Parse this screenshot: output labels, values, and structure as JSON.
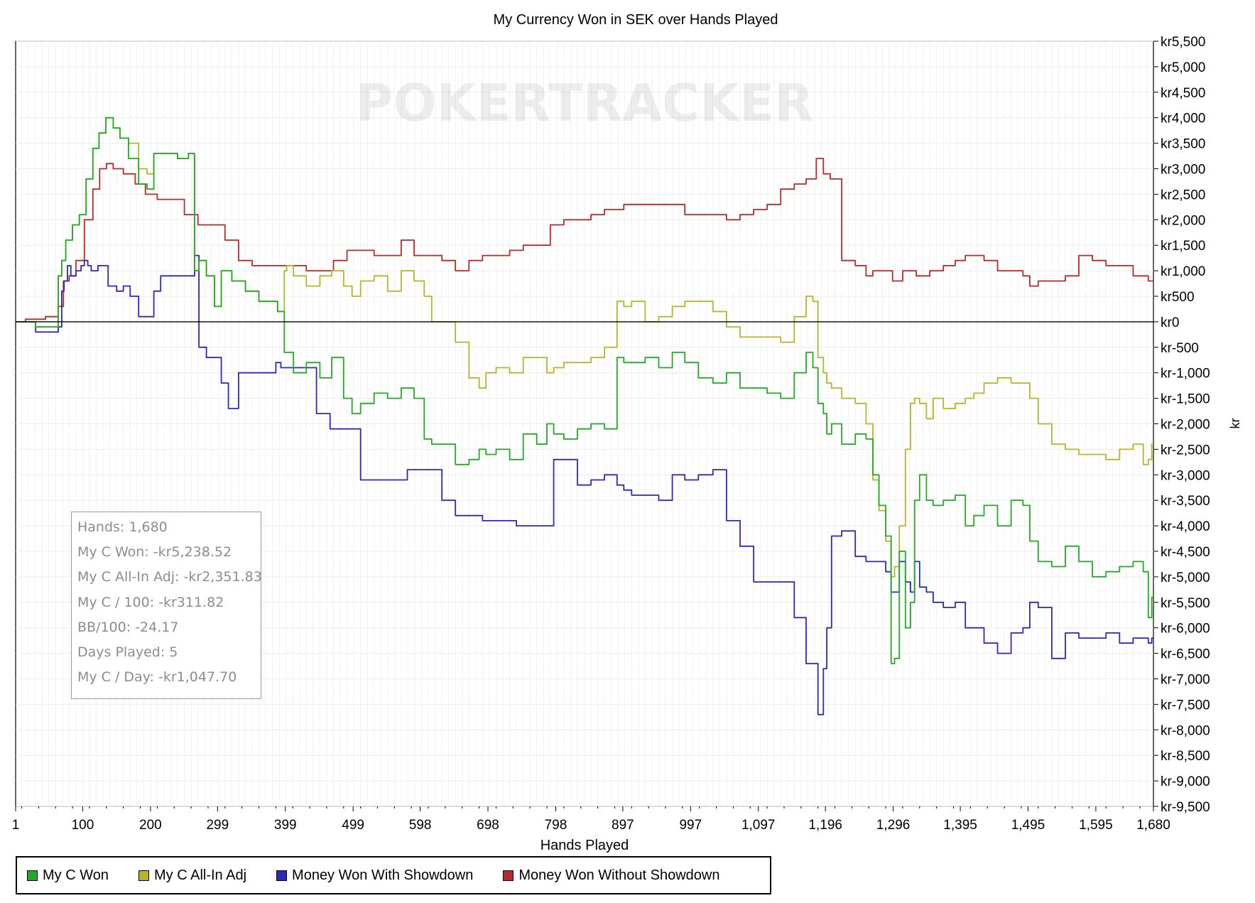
{
  "chart_data": {
    "type": "line",
    "title": "My Currency Won in SEK over Hands Played",
    "xlabel": "Hands Played",
    "ylabel": "kr",
    "x_ticks": [
      1,
      100,
      200,
      299,
      399,
      499,
      598,
      698,
      798,
      897,
      997,
      1097,
      1196,
      1296,
      1395,
      1495,
      1595,
      1680
    ],
    "x_tick_labels": [
      "1",
      "100",
      "200",
      "299",
      "399",
      "499",
      "598",
      "698",
      "798",
      "897",
      "997",
      "1,097",
      "1,196",
      "1,296",
      "1,395",
      "1,495",
      "1,595",
      "1,680"
    ],
    "xlim": [
      1,
      1680
    ],
    "ylim": [
      -9500,
      5500
    ],
    "y_ticks": [
      5500,
      5000,
      4500,
      4000,
      3500,
      3000,
      2500,
      2000,
      1500,
      1000,
      500,
      0,
      -500,
      -1000,
      -1500,
      -2000,
      -2500,
      -3000,
      -3500,
      -4000,
      -4500,
      -5000,
      -5500,
      -6000,
      -6500,
      -7000,
      -7500,
      -8000,
      -8500,
      -9000,
      -9500
    ],
    "y_tick_labels": [
      "kr5,500",
      "kr5,000",
      "kr4,500",
      "kr4,000",
      "kr3,500",
      "kr3,000",
      "kr2,500",
      "kr2,000",
      "kr1,500",
      "kr1,000",
      "kr500",
      "kr0",
      "kr-500",
      "kr-1,000",
      "kr-1,500",
      "kr-2,000",
      "kr-2,500",
      "kr-3,000",
      "kr-3,500",
      "kr-4,000",
      "kr-4,500",
      "kr-5,000",
      "kr-5,500",
      "kr-6,000",
      "kr-6,500",
      "kr-7,000",
      "kr-7,500",
      "kr-8,000",
      "kr-8,500",
      "kr-9,000",
      "kr-9,500"
    ],
    "y_axis_side": "right",
    "grid": true,
    "zero_line": true,
    "legend_position": "bottom-left",
    "series": [
      {
        "name": "My C Won",
        "color": "#22aa22",
        "x": [
          1,
          60,
          68,
          70,
          80,
          90,
          100,
          110,
          120,
          128,
          140,
          150,
          160,
          175,
          190,
          200,
          210,
          230,
          250,
          262,
          268,
          275,
          290,
          299,
          310,
          330,
          350,
          370,
          380,
          395,
          400,
          402,
          420,
          440,
          460,
          475,
          495,
          500,
          520,
          540,
          560,
          580,
          598,
          610,
          620,
          640,
          660,
          680,
          690,
          700,
          720,
          740,
          760,
          780,
          790,
          800,
          820,
          840,
          860,
          880,
          897,
          900,
          920,
          940,
          960,
          980,
          997,
          1020,
          1040,
          1060,
          1080,
          1100,
          1120,
          1140,
          1160,
          1175,
          1180,
          1190,
          1196,
          1200,
          1210,
          1230,
          1250,
          1262,
          1270,
          1280,
          1290,
          1296,
          1300,
          1310,
          1318,
          1325,
          1330,
          1340,
          1350,
          1360,
          1380,
          1395,
          1410,
          1420,
          1440,
          1460,
          1480,
          1495,
          1500,
          1520,
          1540,
          1560,
          1580,
          1600,
          1620,
          1640,
          1660,
          1670,
          1675,
          1680
        ],
        "y": [
          0,
          -100,
          900,
          1200,
          1600,
          1900,
          2100,
          2800,
          3400,
          3700,
          4000,
          3800,
          3600,
          3200,
          2700,
          2600,
          3300,
          3300,
          3200,
          3300,
          1000,
          1200,
          900,
          300,
          1000,
          800,
          600,
          400,
          400,
          200,
          -600,
          -600,
          -1000,
          -800,
          -1100,
          -700,
          -1500,
          -1800,
          -1600,
          -1400,
          -1500,
          -1300,
          -1500,
          -2300,
          -2400,
          -2400,
          -2800,
          -2700,
          -2500,
          -2600,
          -2500,
          -2700,
          -2200,
          -2400,
          -2000,
          -2200,
          -2300,
          -2100,
          -2000,
          -2100,
          -700,
          -800,
          -800,
          -700,
          -900,
          -600,
          -800,
          -1100,
          -1200,
          -1000,
          -1300,
          -1300,
          -1400,
          -1500,
          -1000,
          -600,
          -900,
          -1600,
          -1800,
          -2200,
          -2000,
          -2400,
          -2200,
          -2300,
          -3000,
          -3600,
          -4200,
          -6700,
          -6600,
          -4500,
          -6000,
          -5500,
          -3500,
          -3000,
          -3500,
          -3600,
          -3500,
          -3400,
          -4000,
          -3800,
          -3600,
          -4000,
          -3500,
          -3600,
          -4300,
          -4700,
          -4800,
          -4400,
          -4700,
          -5000,
          -4900,
          -4800,
          -4700,
          -4900,
          -5800,
          -5400
        ]
      },
      {
        "name": "My C All-In Adj",
        "color": "#b5b52a",
        "x": [
          1,
          60,
          68,
          70,
          80,
          90,
          100,
          110,
          120,
          128,
          140,
          150,
          160,
          175,
          190,
          200,
          210,
          230,
          250,
          262,
          268,
          275,
          290,
          299,
          310,
          330,
          350,
          370,
          380,
          395,
          400,
          402,
          420,
          440,
          460,
          475,
          495,
          500,
          520,
          540,
          560,
          580,
          598,
          610,
          620,
          640,
          660,
          680,
          690,
          700,
          720,
          740,
          760,
          780,
          790,
          800,
          820,
          840,
          860,
          880,
          897,
          900,
          920,
          940,
          960,
          980,
          997,
          1020,
          1040,
          1060,
          1080,
          1100,
          1120,
          1140,
          1160,
          1175,
          1180,
          1190,
          1196,
          1200,
          1210,
          1230,
          1250,
          1262,
          1270,
          1280,
          1290,
          1296,
          1300,
          1310,
          1318,
          1325,
          1330,
          1340,
          1350,
          1360,
          1380,
          1395,
          1410,
          1420,
          1440,
          1460,
          1480,
          1495,
          1500,
          1520,
          1540,
          1560,
          1580,
          1600,
          1620,
          1640,
          1660,
          1670,
          1675,
          1680
        ],
        "y": [
          0,
          -100,
          900,
          1200,
          1600,
          1900,
          2100,
          2800,
          3400,
          3700,
          4000,
          3800,
          3600,
          3500,
          3000,
          2900,
          3300,
          3300,
          3200,
          3300,
          1000,
          1200,
          900,
          300,
          1000,
          800,
          600,
          400,
          400,
          200,
          1000,
          1100,
          900,
          700,
          900,
          1000,
          700,
          500,
          800,
          900,
          600,
          1000,
          800,
          500,
          0,
          0,
          -400,
          -1100,
          -1300,
          -1000,
          -900,
          -1000,
          -700,
          -700,
          -1000,
          -900,
          -800,
          -800,
          -700,
          -500,
          400,
          300,
          400,
          0,
          100,
          300,
          400,
          400,
          200,
          -100,
          -300,
          -300,
          -300,
          -400,
          100,
          500,
          400,
          -700,
          -1000,
          -1200,
          -1300,
          -1500,
          -1600,
          -2000,
          -3100,
          -3700,
          -4300,
          -5000,
          -4800,
          -4000,
          -2500,
          -1600,
          -1500,
          -1600,
          -1900,
          -1500,
          -1700,
          -1600,
          -1500,
          -1400,
          -1200,
          -1100,
          -1200,
          -1200,
          -1500,
          -2000,
          -2400,
          -2500,
          -2600,
          -2600,
          -2700,
          -2500,
          -2400,
          -2800,
          -2700,
          -2400
        ]
      },
      {
        "name": "Money Won With Showdown",
        "color": "#2a2ab5",
        "x": [
          1,
          60,
          68,
          70,
          75,
          80,
          85,
          95,
          100,
          105,
          110,
          115,
          130,
          145,
          155,
          165,
          175,
          190,
          200,
          210,
          220,
          250,
          262,
          268,
          275,
          290,
          299,
          310,
          320,
          340,
          360,
          380,
          390,
          395,
          430,
          460,
          470,
          500,
          520,
          560,
          598,
          620,
          640,
          660,
          680,
          700,
          720,
          760,
          780,
          790,
          800,
          820,
          840,
          860,
          880,
          897,
          900,
          920,
          940,
          960,
          980,
          997,
          1020,
          1040,
          1060,
          1080,
          1100,
          1120,
          1140,
          1160,
          1175,
          1180,
          1190,
          1196,
          1200,
          1210,
          1230,
          1250,
          1262,
          1270,
          1280,
          1290,
          1296,
          1300,
          1310,
          1318,
          1325,
          1330,
          1340,
          1350,
          1360,
          1380,
          1395,
          1410,
          1420,
          1440,
          1460,
          1480,
          1495,
          1500,
          1520,
          1540,
          1560,
          1580,
          1600,
          1620,
          1640,
          1660,
          1670,
          1675,
          1680
        ],
        "y": [
          0,
          -200,
          -100,
          600,
          800,
          1100,
          900,
          1000,
          1100,
          1200,
          1100,
          1000,
          1100,
          700,
          600,
          700,
          500,
          100,
          100,
          600,
          900,
          900,
          900,
          1300,
          -500,
          -700,
          -700,
          -1200,
          -1700,
          -1000,
          -1000,
          -1000,
          -800,
          -900,
          -900,
          -1800,
          -2100,
          -2100,
          -3100,
          -3100,
          -2900,
          -2900,
          -3500,
          -3800,
          -3800,
          -3900,
          -3900,
          -4000,
          -4000,
          -4000,
          -2700,
          -2700,
          -3200,
          -3100,
          -3000,
          -3200,
          -3300,
          -3400,
          -3400,
          -3500,
          -3000,
          -3100,
          -3000,
          -2900,
          -3900,
          -4400,
          -5100,
          -5100,
          -5100,
          -5800,
          -6700,
          -6700,
          -7700,
          -6800,
          -6000,
          -4200,
          -4100,
          -4600,
          -4700,
          -4700,
          -4700,
          -4900,
          -5300,
          -5300,
          -4700,
          -5100,
          -5300,
          -4700,
          -5200,
          -5300,
          -5500,
          -5600,
          -5500,
          -6000,
          -6000,
          -6300,
          -6500,
          -6100,
          -6000,
          -5500,
          -5600,
          -6600,
          -6100,
          -6200,
          -6200,
          -6100,
          -6300,
          -6200,
          -6200,
          -6300,
          -6200
        ]
      },
      {
        "name": "Money Won Without Showdown",
        "color": "#b52a2a",
        "x": [
          1,
          30,
          60,
          68,
          75,
          85,
          95,
          110,
          120,
          130,
          140,
          150,
          170,
          185,
          200,
          220,
          240,
          260,
          280,
          300,
          320,
          340,
          360,
          380,
          400,
          420,
          440,
          460,
          480,
          500,
          520,
          540,
          560,
          580,
          598,
          620,
          640,
          660,
          680,
          700,
          720,
          740,
          760,
          780,
          800,
          820,
          840,
          860,
          880,
          897,
          900,
          920,
          940,
          960,
          980,
          997,
          1020,
          1040,
          1060,
          1080,
          1100,
          1120,
          1140,
          1160,
          1175,
          1190,
          1196,
          1210,
          1230,
          1250,
          1262,
          1270,
          1290,
          1300,
          1320,
          1340,
          1360,
          1380,
          1395,
          1410,
          1420,
          1440,
          1460,
          1480,
          1495,
          1500,
          1520,
          1540,
          1560,
          1580,
          1600,
          1620,
          1640,
          1660,
          1670,
          1675,
          1680
        ],
        "y": [
          0,
          50,
          100,
          300,
          800,
          900,
          1200,
          2000,
          2600,
          3000,
          3100,
          3000,
          2900,
          2700,
          2500,
          2400,
          2400,
          2100,
          1900,
          1900,
          1600,
          1200,
          1100,
          1100,
          1100,
          1100,
          1000,
          1000,
          1200,
          1400,
          1400,
          1300,
          1300,
          1600,
          1300,
          1300,
          1200,
          1000,
          1200,
          1300,
          1300,
          1400,
          1500,
          1500,
          1900,
          2000,
          2000,
          2100,
          2200,
          2200,
          2300,
          2300,
          2300,
          2300,
          2300,
          2100,
          2100,
          2100,
          2000,
          2100,
          2200,
          2300,
          2600,
          2700,
          2800,
          3200,
          2900,
          2800,
          1200,
          1100,
          900,
          1000,
          1000,
          800,
          1000,
          900,
          1000,
          1100,
          1200,
          1300,
          1300,
          1200,
          1000,
          1000,
          900,
          700,
          800,
          800,
          900,
          1300,
          1200,
          1100,
          1100,
          900,
          900,
          800,
          800
        ]
      }
    ]
  },
  "watermark": "POKERTRACKER",
  "stats": {
    "hands": "Hands: 1,680",
    "won": "My C Won: -kr5,238.52",
    "allin": "My C All-In Adj: -kr2,351.83",
    "per100": "My C / 100: -kr311.82",
    "bb100": "BB/100: -24.17",
    "days": "Days Played: 5",
    "perday": "My C / Day: -kr1,047.70"
  },
  "legend": [
    {
      "label": "My C Won",
      "color": "#22aa22"
    },
    {
      "label": "My C All-In Adj",
      "color": "#b5b52a"
    },
    {
      "label": "Money Won With Showdown",
      "color": "#2a2ab5"
    },
    {
      "label": "Money Won Without Showdown",
      "color": "#b52a2a"
    }
  ]
}
